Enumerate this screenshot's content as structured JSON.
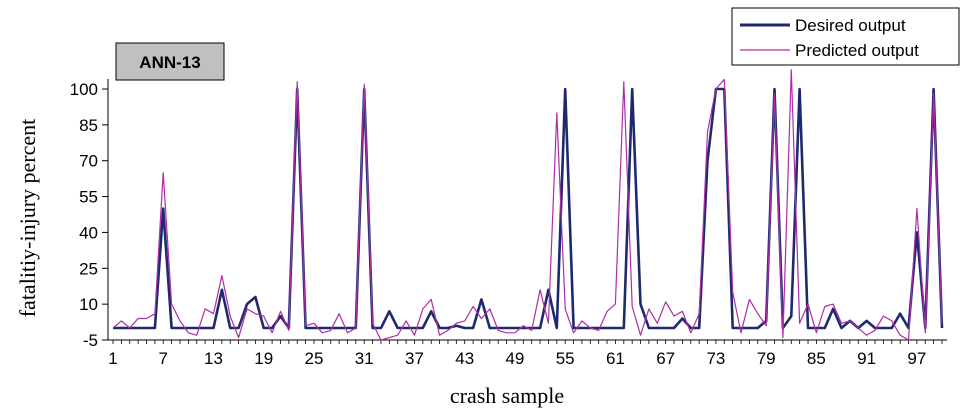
{
  "chart_data": {
    "type": "line",
    "title": "ANN-13",
    "xlabel": "crash sample",
    "ylabel": "fatalitiy-injury percent",
    "ylim": [
      -5,
      100
    ],
    "xlim": [
      1,
      100
    ],
    "yticks": [
      -5,
      10,
      25,
      40,
      55,
      70,
      85,
      100
    ],
    "xticks": [
      1,
      7,
      13,
      19,
      25,
      31,
      37,
      43,
      49,
      55,
      61,
      67,
      73,
      79,
      85,
      91,
      97
    ],
    "legend_position": "top-right",
    "x": [
      1,
      2,
      3,
      4,
      5,
      6,
      7,
      8,
      9,
      10,
      11,
      12,
      13,
      14,
      15,
      16,
      17,
      18,
      19,
      20,
      21,
      22,
      23,
      24,
      25,
      26,
      27,
      28,
      29,
      30,
      31,
      32,
      33,
      34,
      35,
      36,
      37,
      38,
      39,
      40,
      41,
      42,
      43,
      44,
      45,
      46,
      47,
      48,
      49,
      50,
      51,
      52,
      53,
      54,
      55,
      56,
      57,
      58,
      59,
      60,
      61,
      62,
      63,
      64,
      65,
      66,
      67,
      68,
      69,
      70,
      71,
      72,
      73,
      74,
      75,
      76,
      77,
      78,
      79,
      80,
      81,
      82,
      83,
      84,
      85,
      86,
      87,
      88,
      89,
      90,
      91,
      92,
      93,
      94,
      95,
      96,
      97,
      98,
      99,
      100
    ],
    "series": [
      {
        "name": "Desired output",
        "color": "#1f2a6e",
        "values": [
          0,
          0,
          0,
          0,
          0,
          0,
          50,
          0,
          0,
          0,
          0,
          0,
          0,
          16,
          0,
          0,
          10,
          13,
          0,
          0,
          5,
          0,
          100,
          0,
          0,
          0,
          0,
          0,
          0,
          0,
          100,
          0,
          0,
          7,
          0,
          0,
          0,
          0,
          7,
          0,
          0,
          1,
          0,
          0,
          12,
          0,
          0,
          0,
          0,
          0,
          0,
          0,
          16,
          0,
          100,
          0,
          0,
          0,
          0,
          0,
          0,
          0,
          100,
          10,
          0,
          0,
          0,
          0,
          4,
          0,
          0,
          70,
          100,
          100,
          0,
          0,
          0,
          0,
          3,
          100,
          0,
          5,
          100,
          0,
          0,
          0,
          8,
          0,
          3,
          0,
          3,
          0,
          0,
          0,
          6,
          0,
          40,
          0,
          100,
          0
        ]
      },
      {
        "name": "Predicted output",
        "color": "#b02ca6",
        "values": [
          0,
          3,
          0,
          4,
          4,
          6,
          65,
          10,
          3,
          -2,
          -3,
          8,
          6,
          22,
          5,
          -4,
          8,
          6,
          5,
          -2,
          7,
          -1,
          103,
          1,
          2,
          -2,
          -1,
          6,
          -2,
          0,
          102,
          2,
          -5,
          -4,
          -3,
          3,
          -3,
          8,
          12,
          -3,
          -1,
          2,
          3,
          9,
          4,
          8,
          -1,
          -2,
          -2,
          1,
          -1,
          16,
          2,
          90,
          8,
          -2,
          3,
          0,
          -1,
          7,
          10,
          103,
          9,
          -3,
          8,
          2,
          11,
          5,
          7,
          -2,
          6,
          82,
          100,
          104,
          15,
          -2,
          12,
          6,
          1,
          98,
          -4,
          108,
          2,
          10,
          -2,
          9,
          10,
          2,
          3,
          0,
          -3,
          -1,
          5,
          3,
          -3,
          -5,
          50,
          -2,
          98,
          2
        ]
      }
    ]
  }
}
